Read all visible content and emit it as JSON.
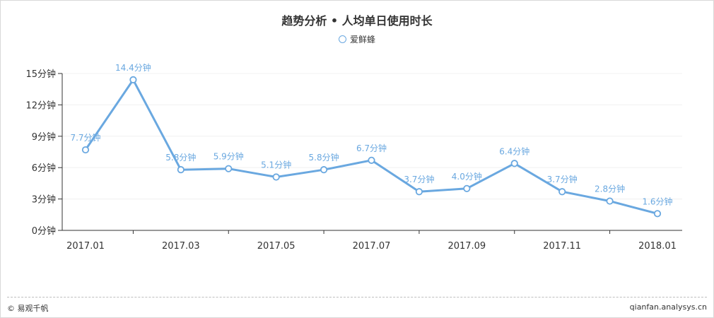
{
  "chart_data": {
    "type": "line",
    "title": "趋势分析 • 人均单日使用时长",
    "ylim": [
      0,
      15
    ],
    "y_ticks": [
      0,
      3,
      6,
      9,
      12,
      15
    ],
    "y_unit": "分钟",
    "x_tick_labels": [
      "2017.01",
      "2017.03",
      "2017.05",
      "2017.07",
      "2017.09",
      "2017.11",
      "2018.01"
    ],
    "grid": true,
    "legend": "top-center",
    "series": [
      {
        "name": "爱鲜蜂",
        "color": "#6aa8e0",
        "x": [
          "2017.01",
          "2017.02",
          "2017.03",
          "2017.04",
          "2017.05",
          "2017.06",
          "2017.07",
          "2017.08",
          "2017.09",
          "2017.10",
          "2017.11",
          "2017.12",
          "2018.01"
        ],
        "values": [
          7.7,
          14.4,
          5.8,
          5.9,
          5.1,
          5.8,
          6.7,
          3.7,
          4.0,
          6.4,
          3.7,
          2.8,
          1.6
        ],
        "data_labels": [
          "7.7分钟",
          "14.4分钟",
          "5.8分钟",
          "5.9分钟",
          "5.1分钟",
          "5.8分钟",
          "6.7分钟",
          "3.7分钟",
          "4.0分钟",
          "6.4分钟",
          "3.7分钟",
          "2.8分钟",
          "1.6分钟"
        ]
      }
    ]
  },
  "footer": {
    "source": "© 易观千帆",
    "site": "qianfan.analysys.cn"
  }
}
